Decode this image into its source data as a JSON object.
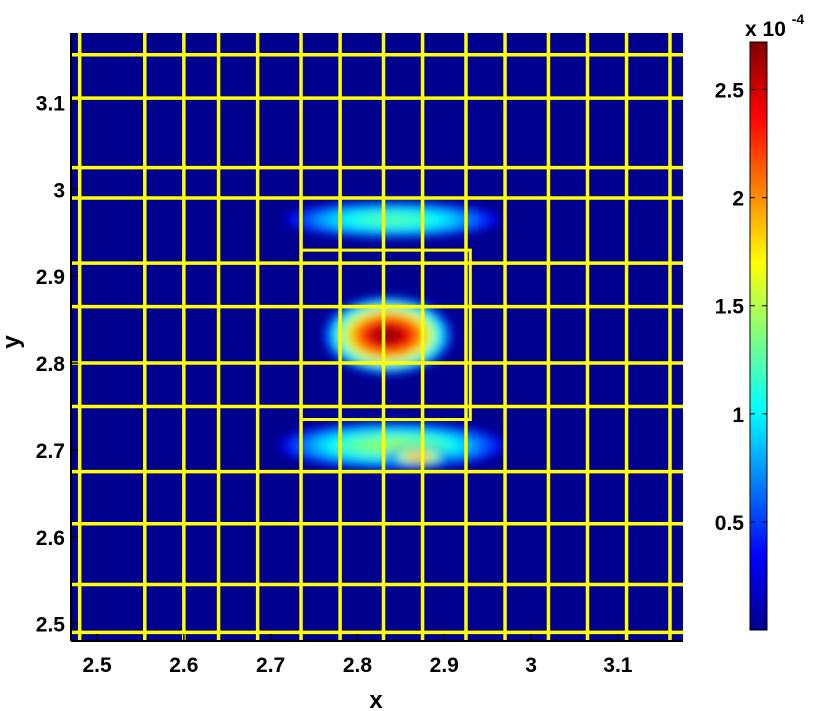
{
  "chart_data": {
    "type": "heatmap",
    "title": "",
    "xlabel": "x",
    "ylabel": "y",
    "xlim": [
      2.47,
      3.175
    ],
    "ylim": [
      2.48,
      3.18
    ],
    "xticks": [
      2.5,
      2.6,
      2.7,
      2.8,
      2.9,
      3,
      3.1
    ],
    "xtick_labels": [
      "2.5",
      "2.6",
      "2.7",
      "2.8",
      "2.9",
      "3",
      "3.1"
    ],
    "yticks": [
      2.5,
      2.6,
      2.7,
      2.8,
      2.9,
      3,
      3.1
    ],
    "ytick_labels": [
      "2.5",
      "2.6",
      "2.7",
      "2.8",
      "2.9",
      "3",
      "3.1"
    ],
    "colormap": "jet",
    "background_color": "#00008f",
    "grid_color": "#ffff00",
    "grid_x_lines": [
      2.48,
      2.555,
      2.6,
      2.64,
      2.685,
      2.735,
      2.78,
      2.83,
      2.875,
      2.925,
      2.97,
      3.02,
      3.065,
      3.11,
      3.16
    ],
    "grid_y_lines": [
      2.49,
      2.545,
      2.615,
      2.675,
      2.75,
      2.8,
      2.865,
      2.915,
      2.99,
      3.025,
      3.105,
      3.155
    ],
    "refinement_box": {
      "x0": 2.735,
      "x1": 2.93,
      "y0": 2.735,
      "y1": 2.93
    },
    "field_blobs": [
      {
        "cx": 2.835,
        "cy": 2.832,
        "rx": 0.06,
        "ry": 0.036,
        "peak": 0.000272
      },
      {
        "cx": 2.84,
        "cy": 2.705,
        "rx": 0.105,
        "ry": 0.022,
        "peak": 0.00013
      },
      {
        "cx": 2.87,
        "cy": 2.692,
        "rx": 0.03,
        "ry": 0.009,
        "peak": 0.0002
      },
      {
        "cx": 2.84,
        "cy": 2.965,
        "rx": 0.1,
        "ry": 0.017,
        "peak": 0.00011
      }
    ],
    "colorbar": {
      "min": 0,
      "max": 0.000272,
      "ticks": [
        0.5,
        1,
        1.5,
        2,
        2.5
      ],
      "tick_labels": [
        "0.5",
        "1",
        "1.5",
        "2",
        "2.5"
      ],
      "multiplier_base": "x 10",
      "multiplier_exponent": "-4"
    }
  }
}
